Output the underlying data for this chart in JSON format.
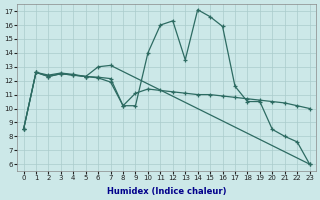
{
  "xlabel": "Humidex (Indice chaleur)",
  "background_color": "#cce8e8",
  "grid_color": "#aacccc",
  "line_color": "#2d6b62",
  "xlim": [
    -0.5,
    23.5
  ],
  "ylim": [
    5.5,
    17.5
  ],
  "xticks": [
    0,
    1,
    2,
    3,
    4,
    5,
    6,
    7,
    8,
    9,
    10,
    11,
    12,
    13,
    14,
    15,
    16,
    17,
    18,
    19,
    20,
    21,
    22,
    23
  ],
  "yticks": [
    6,
    7,
    8,
    9,
    10,
    11,
    12,
    13,
    14,
    15,
    16,
    17
  ],
  "line1_x": [
    0,
    1,
    2,
    3,
    4,
    5,
    6,
    7,
    8,
    9,
    10,
    11,
    12,
    13,
    14,
    15,
    16,
    17,
    18,
    19,
    20,
    21,
    22,
    23
  ],
  "line1_y": [
    8.5,
    12.6,
    12.4,
    12.55,
    12.45,
    12.3,
    12.25,
    12.15,
    10.2,
    10.2,
    14.0,
    16.0,
    16.3,
    13.5,
    17.1,
    16.6,
    15.9,
    11.6,
    10.5,
    10.5,
    8.5,
    8.0,
    7.6,
    6.0
  ],
  "line2_x": [
    0,
    1,
    2,
    3,
    4,
    5,
    6,
    7,
    8,
    9,
    10,
    11,
    12,
    13,
    14,
    15,
    16,
    17,
    18,
    19,
    20,
    21,
    22,
    23
  ],
  "line2_y": [
    8.5,
    12.6,
    12.3,
    12.5,
    12.4,
    12.3,
    12.2,
    11.9,
    10.2,
    11.1,
    11.4,
    11.3,
    11.2,
    11.1,
    11.0,
    11.0,
    10.9,
    10.8,
    10.7,
    10.6,
    10.5,
    10.4,
    10.2,
    10.0
  ],
  "line3_x": [
    0,
    1,
    2,
    3,
    4,
    5,
    6,
    7,
    23
  ],
  "line3_y": [
    8.5,
    12.6,
    12.3,
    12.5,
    12.4,
    12.3,
    13.0,
    13.1,
    6.0
  ]
}
